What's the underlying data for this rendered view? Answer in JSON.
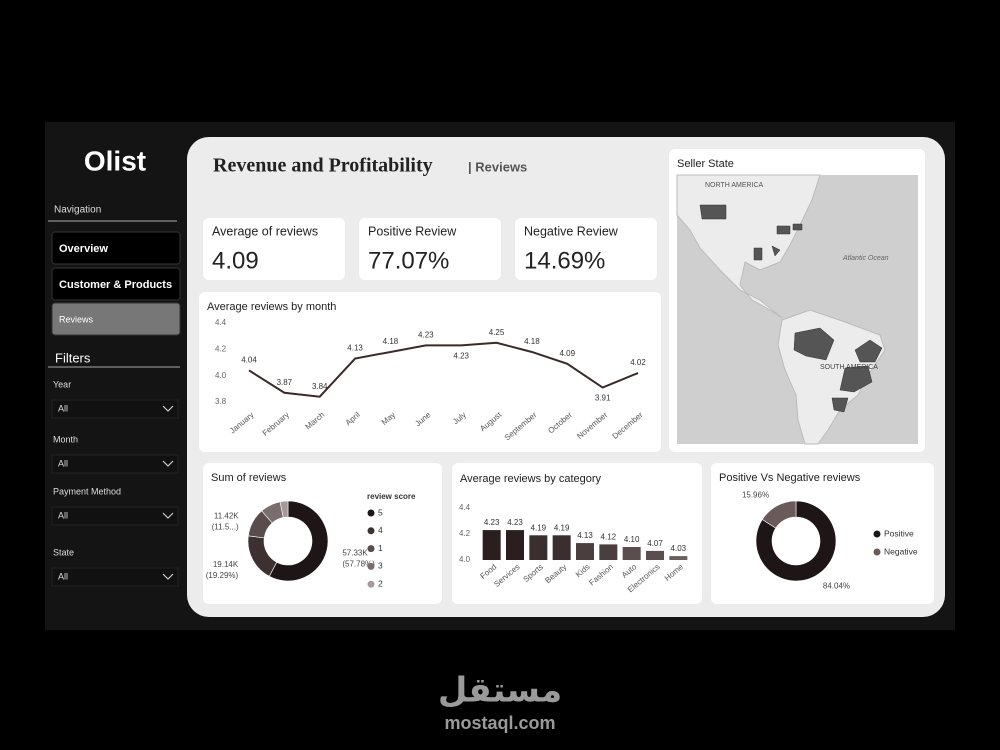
{
  "sidebar": {
    "logo": "Olist",
    "nav_title": "Navigation",
    "nav": [
      "Overview",
      "Customer & Products",
      "Reviews"
    ],
    "filters_title": "Filters",
    "filters": [
      {
        "label": "Year",
        "value": "All"
      },
      {
        "label": "Month",
        "value": "All"
      },
      {
        "label": "Payment Method",
        "value": "All"
      },
      {
        "label": "State",
        "value": "All"
      }
    ]
  },
  "header": {
    "title": "Revenue and Profitability",
    "subtitle": "| Reviews"
  },
  "kpis": [
    {
      "label": "Average of reviews",
      "value": "4.09"
    },
    {
      "label": "Positive Review",
      "value": "77.07%"
    },
    {
      "label": "Negative Review",
      "value": "14.69%"
    }
  ],
  "map": {
    "title": "Seller State",
    "labels": [
      "NORTH AMERICA",
      "Atlantic Ocean",
      "SOUTH AMERICA"
    ]
  },
  "chart_data": [
    {
      "type": "line",
      "title": "Average reviews by month",
      "categories": [
        "January",
        "February",
        "March",
        "April",
        "May",
        "June",
        "July",
        "August",
        "September",
        "October",
        "November",
        "December"
      ],
      "values": [
        4.04,
        3.87,
        3.84,
        4.13,
        4.18,
        4.23,
        4.23,
        4.25,
        4.18,
        4.09,
        3.91,
        4.02
      ],
      "color": "#3a2a2a",
      "ylim": [
        3.8,
        4.4
      ],
      "yticks": [
        3.8,
        {
          "value": 4,
          "label": "4.0"
        },
        4.2,
        4.4
      ]
    },
    {
      "type": "donut",
      "title": "Sum of reviews",
      "legend_title": "review score",
      "categories": [
        "5",
        "4",
        "1",
        "3",
        "2"
      ],
      "values": [
        57330,
        19140,
        11420,
        8180,
        3150
      ],
      "value_labels": [
        "57.33K",
        "19.14K",
        "11.42K",
        null,
        null
      ],
      "percent_labels": [
        "(57.78%)",
        "(19.29%)",
        "(11.5...)",
        null,
        null
      ],
      "colors": [
        "#1e1616",
        "#3d3030",
        "#5a4c4c",
        "#7a6d6d",
        "#a59a9a"
      ]
    },
    {
      "type": "bar",
      "title": "Average reviews by category",
      "categories": [
        "Food",
        "Services",
        "Sports",
        "Beauty",
        "Kids",
        "Fashion",
        "Auto",
        "Electronics",
        "Home"
      ],
      "values": [
        4.23,
        4.23,
        4.19,
        4.19,
        4.13,
        4.12,
        4.1,
        4.07,
        4.03
      ],
      "value_labels": [
        "4.23",
        "4.23",
        "4.19",
        "4.19",
        "4.13",
        "4.12",
        "4.10",
        "4.07",
        "4.03"
      ],
      "colors": [
        "#2a1e1e",
        "#2a1e1e",
        "#3a2e2e",
        "#3a2e2e",
        "#4a3e3e",
        "#4a3e3e",
        "#5a4e4e",
        "#5a4e4e",
        "#6a5e5e"
      ],
      "ylim": [
        4,
        4.4
      ],
      "yticks": [
        {
          "value": 4,
          "label": "4.0"
        },
        4.2,
        4.4
      ]
    },
    {
      "type": "donut",
      "title": "Positive Vs Negative reviews",
      "categories": [
        "Positive",
        "Negative"
      ],
      "values": [
        84.04,
        15.96
      ],
      "value_labels": [
        "84.04%",
        "15.96%"
      ],
      "colors": [
        "#1e1616",
        "#6b5a5a"
      ]
    }
  ],
  "watermark": {
    "arabic": "مستقل",
    "latin": "mostaql.com"
  }
}
